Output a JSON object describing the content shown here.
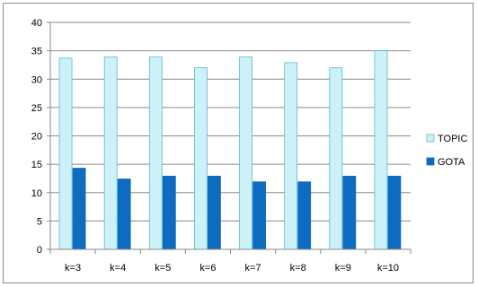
{
  "chart_data": {
    "type": "bar",
    "categories": [
      "k=3",
      "k=4",
      "k=5",
      "k=6",
      "k=7",
      "k=8",
      "k=9",
      "k=10"
    ],
    "series": [
      {
        "name": "TOPIC",
        "values": [
          33.7,
          33.9,
          33.9,
          32.0,
          33.9,
          32.9,
          32.0,
          35.0
        ],
        "color": "#ccf2f8",
        "edge": "#5bb7d2"
      },
      {
        "name": "GOTA",
        "values": [
          14.3,
          12.4,
          12.9,
          12.9,
          11.9,
          11.9,
          12.9,
          12.9
        ],
        "color": "#0d6cc0",
        "edge": "#0d6cc0"
      }
    ],
    "ylim": [
      0,
      40
    ],
    "yticks": [
      "0",
      "5",
      "10",
      "15",
      "20",
      "25",
      "30",
      "35",
      "40"
    ],
    "grid": true,
    "legend_position": "right",
    "title": "",
    "xlabel": "",
    "ylabel": ""
  }
}
